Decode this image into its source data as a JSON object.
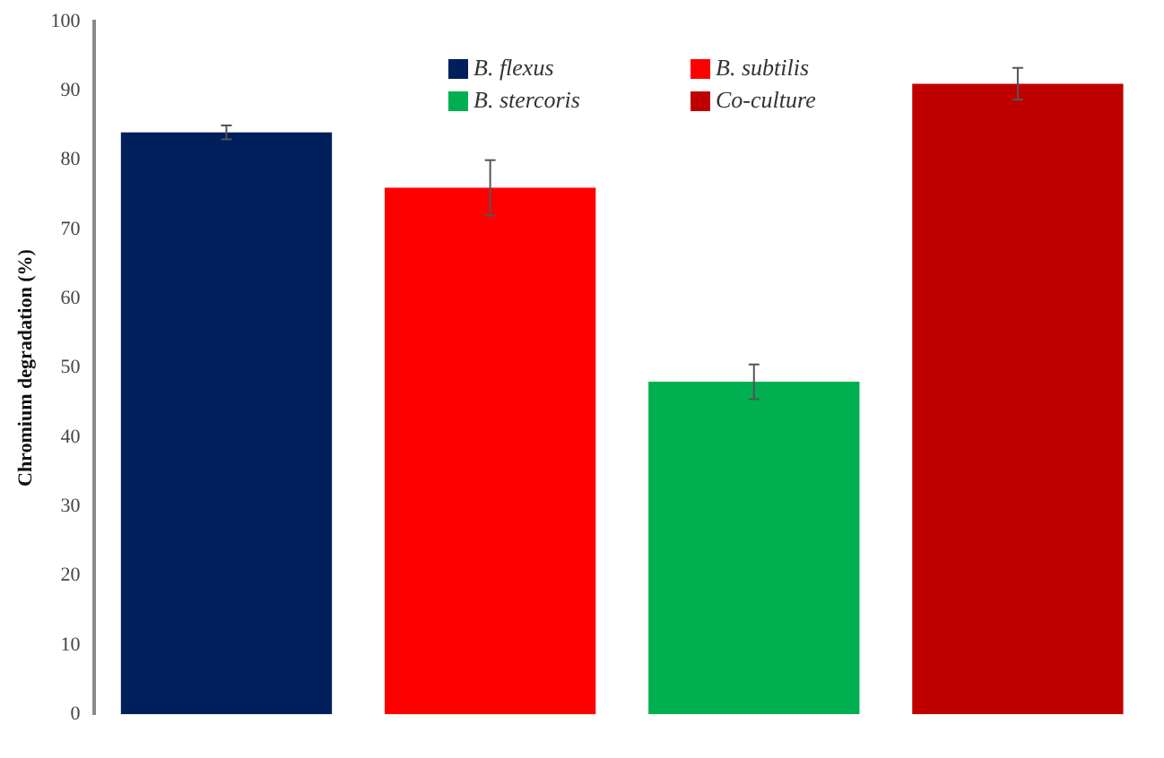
{
  "chart_data": {
    "type": "bar",
    "ylabel": "Chromium degradation (%)",
    "categories": [
      null,
      null,
      null,
      null
    ],
    "stacked": true,
    "series": [
      {
        "name": "B. flexus",
        "color": "#001f5b",
        "values": [
          84,
          null,
          null,
          null
        ],
        "errors": [
          1,
          null,
          null,
          null
        ]
      },
      {
        "name": "B. subtilis",
        "color": "#ff0000",
        "values": [
          null,
          76,
          null,
          null
        ],
        "errors": [
          null,
          4,
          null,
          null
        ]
      },
      {
        "name": "B. stercoris",
        "color": "#00b050",
        "values": [
          null,
          null,
          48,
          null
        ],
        "errors": [
          null,
          null,
          2.5,
          null
        ]
      },
      {
        "name": "Co-culture",
        "color": "#c00000",
        "values": [
          null,
          null,
          null,
          91
        ],
        "errors": [
          null,
          null,
          null,
          2.3
        ]
      }
    ],
    "ylim": [
      0,
      100
    ],
    "yticks": [
      0,
      10,
      20,
      30,
      40,
      50,
      60,
      70,
      80,
      90,
      100
    ],
    "grid": false,
    "legend": "top"
  }
}
